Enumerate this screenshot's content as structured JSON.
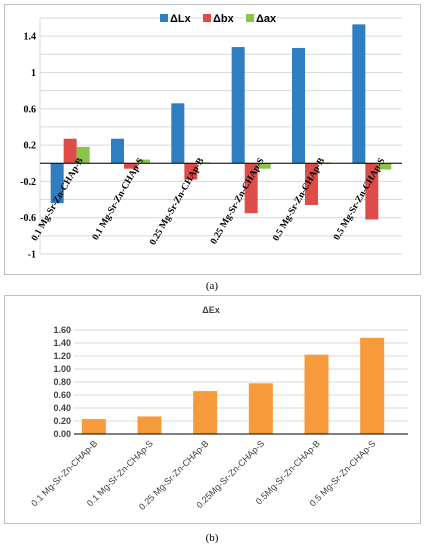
{
  "chart_data": [
    {
      "type": "bar",
      "panel_label": "(a)",
      "categories": [
        "0.1 Mg-Sr-Zn-CHAp-B",
        "0.1 Mg-Sr-Zn-CHAp-S",
        "0.25 Mg-Sr-Zn-CHAp-B",
        "0.25 Mg-Sr-Zn-CHAp-S",
        "0.5 Mg-Sr-Zn-CHAp-B",
        "0.5 Mg-Sr-Zn-CHAp-S"
      ],
      "series": [
        {
          "name": "ΔLx",
          "color": "#2f7ec1",
          "values": [
            -0.44,
            0.27,
            0.66,
            1.28,
            1.27,
            1.53
          ]
        },
        {
          "name": "Δbx",
          "color": "#de4c4a",
          "values": [
            0.27,
            -0.06,
            -0.18,
            -0.55,
            -0.46,
            -0.62
          ]
        },
        {
          "name": "Δax",
          "color": "#8ac24a",
          "values": [
            0.18,
            0.04,
            0.01,
            -0.06,
            0.01,
            -0.07
          ]
        }
      ],
      "yticks": [
        "-1",
        "-0.6",
        "-0.2",
        "0.2",
        "0.6",
        "1",
        "1.4"
      ],
      "ylim": [
        -1,
        1.6
      ],
      "grid": true,
      "legend_position": "top-right"
    },
    {
      "type": "bar",
      "panel_label": "(b)",
      "title": "ΔEx",
      "categories": [
        "0.1 Mg-Sr-Zn-CHAp-B",
        "0.1 Mg-Sr-Zn-CHAp-S",
        "0.25 Mg-Sr-Zn-CHAp-B",
        "0.25Mg-Sr-Zn-CHAp-S",
        "0.5Mg-Sr-Zn-CHAp-B",
        "0.5 Mg-Sr-Zn-CHAp-S"
      ],
      "series": [
        {
          "color": "#f79a3b",
          "values": [
            0.23,
            0.27,
            0.66,
            0.78,
            1.22,
            1.48
          ]
        }
      ],
      "yticks": [
        "0.00",
        "0.20",
        "0.40",
        "0.60",
        "0.80",
        "1.00",
        "1.20",
        "1.40",
        "1.60"
      ],
      "ylim": [
        0,
        1.6
      ],
      "grid": true
    }
  ]
}
